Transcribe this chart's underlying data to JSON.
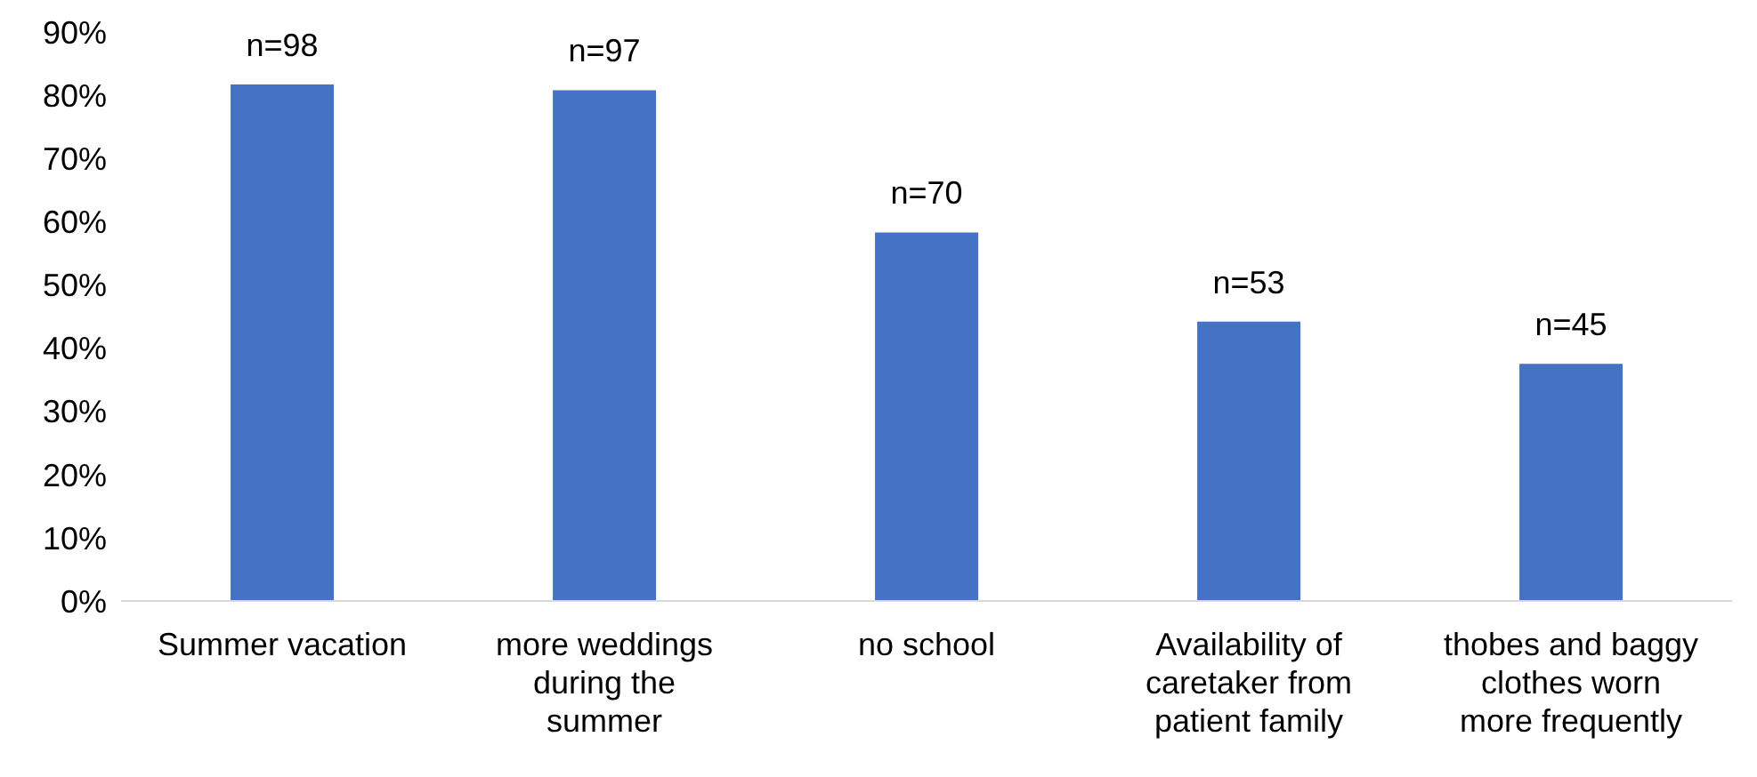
{
  "chart_data": {
    "type": "bar",
    "categories": [
      "Summer vacation",
      "more weddings during the summer",
      "no school",
      "Availability of caretaker from patient family",
      "thobes and baggy clothes worn more frequently"
    ],
    "values": [
      81.7,
      80.8,
      58.3,
      44.2,
      37.5
    ],
    "annotations": [
      {
        "text": "n=98",
        "x": "Summer vacation",
        "y": 81.7
      },
      {
        "text": "n=97",
        "x": "more weddings during the summer",
        "y": 80.8
      },
      {
        "text": "n=70",
        "x": "no school",
        "y": 58.3
      },
      {
        "text": "n=53",
        "x": "Availability of caretaker from patient family",
        "y": 44.2
      },
      {
        "text": "n=45",
        "x": "thobes and baggy clothes worn more frequently",
        "y": 37.5
      }
    ],
    "color": "#4472c4",
    "ylim": [
      0,
      90
    ],
    "yticks": [
      {
        "value": 0,
        "label": "0%"
      },
      {
        "value": 10,
        "label": "10%"
      },
      {
        "value": 20,
        "label": "20%"
      },
      {
        "value": 30,
        "label": "30%"
      },
      {
        "value": 40,
        "label": "40%"
      },
      {
        "value": 50,
        "label": "50%"
      },
      {
        "value": 60,
        "label": "60%"
      },
      {
        "value": 70,
        "label": "70%"
      },
      {
        "value": 80,
        "label": "80%"
      },
      {
        "value": 90,
        "label": "90%"
      }
    ],
    "grid": false,
    "legend": false
  }
}
